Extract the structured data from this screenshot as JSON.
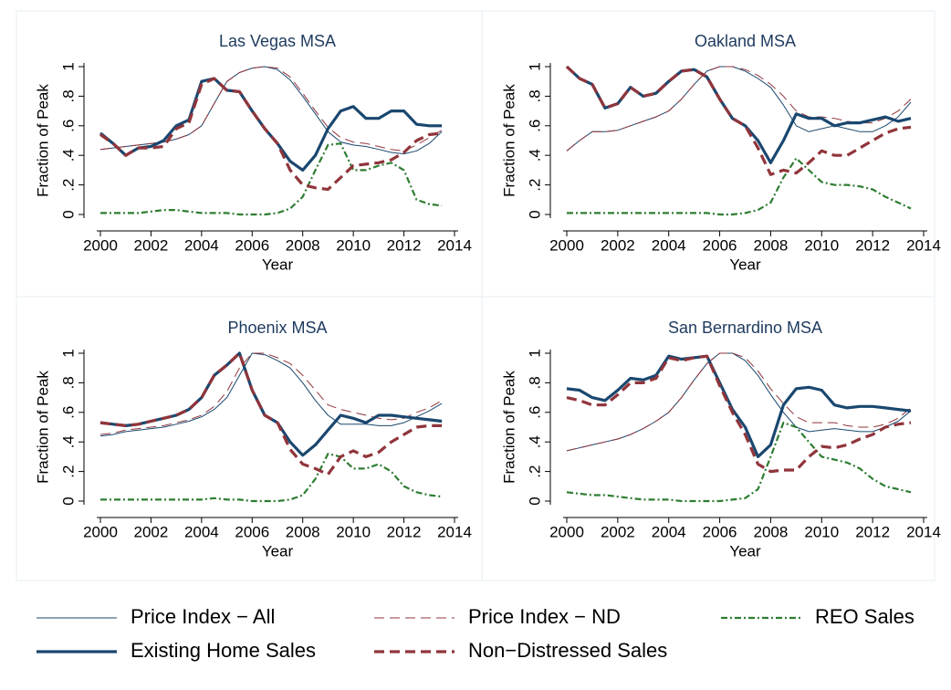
{
  "chart_data": [
    {
      "type": "line",
      "title": "Las Vegas MSA",
      "x_label": "Year",
      "y_label": "Fraction of Peak",
      "x": [
        2000,
        2000.5,
        2001,
        2001.5,
        2002,
        2002.5,
        2003,
        2003.5,
        2004,
        2004.5,
        2005,
        2005.5,
        2006,
        2006.5,
        2007,
        2007.5,
        2008,
        2008.5,
        2009,
        2009.5,
        2010,
        2010.5,
        2011,
        2011.5,
        2012,
        2012.5,
        2013,
        2013.5
      ],
      "xlim": [
        2000,
        2014
      ],
      "xticks": [
        2000,
        2002,
        2004,
        2006,
        2008,
        2010,
        2012,
        2014
      ],
      "ylim": [
        0,
        1
      ],
      "yticks": [
        0,
        {
          "value": 0.2,
          "label": ".2"
        },
        {
          "value": 0.4,
          "label": ".4"
        },
        {
          "value": 0.6,
          "label": ".6"
        },
        {
          "value": 0.8,
          "label": ".8"
        },
        1
      ],
      "series": [
        {
          "name": "Price Index − All",
          "color": "#1a476f",
          "weight": "thin",
          "dash": "solid",
          "values": [
            0.44,
            0.45,
            0.46,
            0.47,
            0.48,
            0.49,
            0.51,
            0.54,
            0.6,
            0.75,
            0.9,
            0.96,
            0.99,
            1.0,
            0.98,
            0.91,
            0.8,
            0.68,
            0.56,
            0.49,
            0.47,
            0.46,
            0.44,
            0.42,
            0.41,
            0.43,
            0.48,
            0.56
          ]
        },
        {
          "name": "Price Index − ND",
          "color": "#90353b",
          "weight": "thin",
          "dash": "dash",
          "values": [
            0.44,
            0.45,
            0.46,
            0.47,
            0.48,
            0.49,
            0.51,
            0.54,
            0.6,
            0.75,
            0.9,
            0.96,
            0.99,
            1.0,
            0.99,
            0.93,
            0.82,
            0.7,
            0.59,
            0.52,
            0.49,
            0.48,
            0.46,
            0.44,
            0.43,
            0.47,
            0.52,
            0.57
          ]
        },
        {
          "name": "REO Sales",
          "color": "#2e7d32",
          "weight": "medium",
          "dash": "dashdot",
          "values": [
            0.01,
            0.01,
            0.01,
            0.01,
            0.02,
            0.03,
            0.03,
            0.02,
            0.01,
            0.01,
            0.01,
            0.0,
            0.0,
            0.0,
            0.01,
            0.04,
            0.12,
            0.3,
            0.47,
            0.48,
            0.3,
            0.3,
            0.33,
            0.35,
            0.3,
            0.1,
            0.07,
            0.06
          ]
        },
        {
          "name": "Existing Home Sales",
          "color": "#1a476f",
          "weight": "thick",
          "dash": "solid",
          "values": [
            0.55,
            0.48,
            0.4,
            0.45,
            0.46,
            0.5,
            0.6,
            0.64,
            0.9,
            0.92,
            0.84,
            0.83,
            0.7,
            0.58,
            0.48,
            0.36,
            0.3,
            0.4,
            0.58,
            0.7,
            0.73,
            0.65,
            0.65,
            0.7,
            0.7,
            0.61,
            0.6,
            0.6
          ]
        },
        {
          "name": "Non−Distressed Sales",
          "color": "#90353b",
          "weight": "thick",
          "dash": "dash",
          "values": [
            0.54,
            0.48,
            0.4,
            0.45,
            0.45,
            0.46,
            0.58,
            0.62,
            0.88,
            0.92,
            0.84,
            0.83,
            0.7,
            0.58,
            0.48,
            0.3,
            0.2,
            0.18,
            0.17,
            0.25,
            0.33,
            0.34,
            0.35,
            0.37,
            0.42,
            0.5,
            0.54,
            0.55
          ]
        }
      ]
    },
    {
      "type": "line",
      "title": "Oakland MSA",
      "x_label": "Year",
      "y_label": "Fraction of Peak",
      "x": [
        2000,
        2000.5,
        2001,
        2001.5,
        2002,
        2002.5,
        2003,
        2003.5,
        2004,
        2004.5,
        2005,
        2005.5,
        2006,
        2006.5,
        2007,
        2007.5,
        2008,
        2008.5,
        2009,
        2009.5,
        2010,
        2010.5,
        2011,
        2011.5,
        2012,
        2012.5,
        2013,
        2013.5
      ],
      "xlim": [
        2000,
        2014
      ],
      "xticks": [
        2000,
        2002,
        2004,
        2006,
        2008,
        2010,
        2012,
        2014
      ],
      "ylim": [
        0,
        1
      ],
      "yticks": [
        0,
        {
          "value": 0.2,
          "label": ".2"
        },
        {
          "value": 0.4,
          "label": ".4"
        },
        {
          "value": 0.6,
          "label": ".6"
        },
        {
          "value": 0.8,
          "label": ".8"
        },
        1
      ],
      "series": [
        {
          "name": "Price Index − All",
          "color": "#1a476f",
          "weight": "thin",
          "dash": "solid",
          "values": [
            0.43,
            0.5,
            0.56,
            0.56,
            0.57,
            0.6,
            0.63,
            0.66,
            0.7,
            0.78,
            0.88,
            0.97,
            1.0,
            1.0,
            0.97,
            0.92,
            0.86,
            0.74,
            0.6,
            0.56,
            0.58,
            0.6,
            0.58,
            0.56,
            0.56,
            0.6,
            0.66,
            0.76
          ]
        },
        {
          "name": "Price Index − ND",
          "color": "#90353b",
          "weight": "thin",
          "dash": "dash",
          "values": [
            0.43,
            0.5,
            0.56,
            0.56,
            0.57,
            0.6,
            0.63,
            0.66,
            0.7,
            0.78,
            0.88,
            0.97,
            1.0,
            1.0,
            0.98,
            0.94,
            0.88,
            0.8,
            0.7,
            0.66,
            0.66,
            0.65,
            0.63,
            0.62,
            0.62,
            0.65,
            0.7,
            0.78
          ]
        },
        {
          "name": "REO Sales",
          "color": "#2e7d32",
          "weight": "medium",
          "dash": "dashdot",
          "values": [
            0.01,
            0.01,
            0.01,
            0.01,
            0.01,
            0.01,
            0.01,
            0.01,
            0.01,
            0.01,
            0.01,
            0.01,
            0.0,
            0.0,
            0.01,
            0.03,
            0.08,
            0.25,
            0.38,
            0.3,
            0.22,
            0.2,
            0.2,
            0.19,
            0.17,
            0.12,
            0.08,
            0.04
          ]
        },
        {
          "name": "Existing Home Sales",
          "color": "#1a476f",
          "weight": "thick",
          "dash": "solid",
          "values": [
            1.0,
            0.92,
            0.88,
            0.72,
            0.75,
            0.86,
            0.8,
            0.82,
            0.9,
            0.97,
            0.98,
            0.93,
            0.78,
            0.65,
            0.6,
            0.5,
            0.35,
            0.5,
            0.68,
            0.65,
            0.65,
            0.6,
            0.62,
            0.62,
            0.64,
            0.66,
            0.63,
            0.65
          ]
        },
        {
          "name": "Non−Distressed Sales",
          "color": "#90353b",
          "weight": "thick",
          "dash": "dash",
          "values": [
            1.0,
            0.92,
            0.88,
            0.72,
            0.75,
            0.86,
            0.8,
            0.82,
            0.9,
            0.97,
            0.98,
            0.93,
            0.78,
            0.65,
            0.6,
            0.45,
            0.27,
            0.3,
            0.28,
            0.35,
            0.43,
            0.4,
            0.4,
            0.45,
            0.5,
            0.55,
            0.58,
            0.59
          ]
        }
      ]
    },
    {
      "type": "line",
      "title": "Phoenix MSA",
      "x_label": "Year",
      "y_label": "Fraction of Peak",
      "x": [
        2000,
        2000.5,
        2001,
        2001.5,
        2002,
        2002.5,
        2003,
        2003.5,
        2004,
        2004.5,
        2005,
        2005.5,
        2006,
        2006.5,
        2007,
        2007.5,
        2008,
        2008.5,
        2009,
        2009.5,
        2010,
        2010.5,
        2011,
        2011.5,
        2012,
        2012.5,
        2013,
        2013.5
      ],
      "xlim": [
        2000,
        2014
      ],
      "xticks": [
        2000,
        2002,
        2004,
        2006,
        2008,
        2010,
        2012,
        2014
      ],
      "ylim": [
        0,
        1
      ],
      "yticks": [
        0,
        {
          "value": 0.2,
          "label": ".2"
        },
        {
          "value": 0.4,
          "label": ".4"
        },
        {
          "value": 0.6,
          "label": ".6"
        },
        {
          "value": 0.8,
          "label": ".8"
        },
        1
      ],
      "series": [
        {
          "name": "Price Index − All",
          "color": "#1a476f",
          "weight": "thin",
          "dash": "solid",
          "values": [
            0.44,
            0.45,
            0.47,
            0.48,
            0.49,
            0.5,
            0.52,
            0.54,
            0.57,
            0.62,
            0.7,
            0.85,
            1.0,
            0.99,
            0.95,
            0.9,
            0.8,
            0.68,
            0.58,
            0.52,
            0.52,
            0.52,
            0.51,
            0.51,
            0.53,
            0.57,
            0.61,
            0.66
          ]
        },
        {
          "name": "Price Index − ND",
          "color": "#90353b",
          "weight": "thin",
          "dash": "dash",
          "values": [
            0.45,
            0.46,
            0.48,
            0.49,
            0.5,
            0.51,
            0.53,
            0.55,
            0.58,
            0.64,
            0.74,
            0.9,
            1.0,
            1.0,
            0.97,
            0.93,
            0.85,
            0.75,
            0.65,
            0.62,
            0.6,
            0.58,
            0.56,
            0.55,
            0.56,
            0.6,
            0.63,
            0.68
          ]
        },
        {
          "name": "REO Sales",
          "color": "#2e7d32",
          "weight": "medium",
          "dash": "dashdot",
          "values": [
            0.01,
            0.01,
            0.01,
            0.01,
            0.01,
            0.01,
            0.01,
            0.01,
            0.01,
            0.02,
            0.01,
            0.01,
            0.0,
            0.0,
            0.0,
            0.01,
            0.04,
            0.15,
            0.32,
            0.3,
            0.22,
            0.22,
            0.25,
            0.2,
            0.1,
            0.06,
            0.04,
            0.03
          ]
        },
        {
          "name": "Existing Home Sales",
          "color": "#1a476f",
          "weight": "thick",
          "dash": "solid",
          "values": [
            0.53,
            0.52,
            0.51,
            0.52,
            0.54,
            0.56,
            0.58,
            0.62,
            0.7,
            0.85,
            0.92,
            1.0,
            0.75,
            0.58,
            0.53,
            0.4,
            0.31,
            0.38,
            0.48,
            0.58,
            0.56,
            0.53,
            0.58,
            0.58,
            0.57,
            0.56,
            0.55,
            0.54
          ]
        },
        {
          "name": "Non−Distressed Sales",
          "color": "#90353b",
          "weight": "thick",
          "dash": "dash",
          "values": [
            0.53,
            0.52,
            0.51,
            0.52,
            0.54,
            0.56,
            0.58,
            0.62,
            0.7,
            0.85,
            0.92,
            1.0,
            0.75,
            0.58,
            0.53,
            0.35,
            0.25,
            0.22,
            0.18,
            0.3,
            0.34,
            0.3,
            0.33,
            0.4,
            0.45,
            0.5,
            0.51,
            0.51
          ]
        }
      ]
    },
    {
      "type": "line",
      "title": "San Bernardino MSA",
      "x_label": "Year",
      "y_label": "Fraction of Peak",
      "x": [
        2000,
        2000.5,
        2001,
        2001.5,
        2002,
        2002.5,
        2003,
        2003.5,
        2004,
        2004.5,
        2005,
        2005.5,
        2006,
        2006.5,
        2007,
        2007.5,
        2008,
        2008.5,
        2009,
        2009.5,
        2010,
        2010.5,
        2011,
        2011.5,
        2012,
        2012.5,
        2013,
        2013.5
      ],
      "xlim": [
        2000,
        2014
      ],
      "xticks": [
        2000,
        2002,
        2004,
        2006,
        2008,
        2010,
        2012,
        2014
      ],
      "ylim": [
        0,
        1
      ],
      "yticks": [
        0,
        {
          "value": 0.2,
          "label": ".2"
        },
        {
          "value": 0.4,
          "label": ".4"
        },
        {
          "value": 0.6,
          "label": ".6"
        },
        {
          "value": 0.8,
          "label": ".8"
        },
        1
      ],
      "series": [
        {
          "name": "Price Index − All",
          "color": "#1a476f",
          "weight": "thin",
          "dash": "solid",
          "values": [
            0.34,
            0.36,
            0.38,
            0.4,
            0.42,
            0.45,
            0.49,
            0.54,
            0.6,
            0.7,
            0.82,
            0.93,
            1.0,
            1.0,
            0.95,
            0.85,
            0.72,
            0.6,
            0.5,
            0.47,
            0.48,
            0.49,
            0.48,
            0.47,
            0.47,
            0.5,
            0.54,
            0.61
          ]
        },
        {
          "name": "Price Index − ND",
          "color": "#90353b",
          "weight": "thin",
          "dash": "dash",
          "values": [
            0.34,
            0.36,
            0.38,
            0.4,
            0.42,
            0.45,
            0.49,
            0.54,
            0.6,
            0.7,
            0.82,
            0.93,
            1.0,
            1.0,
            0.97,
            0.88,
            0.76,
            0.66,
            0.57,
            0.53,
            0.53,
            0.53,
            0.51,
            0.5,
            0.5,
            0.52,
            0.56,
            0.63
          ]
        },
        {
          "name": "REO Sales",
          "color": "#2e7d32",
          "weight": "medium",
          "dash": "dashdot",
          "values": [
            0.06,
            0.05,
            0.04,
            0.04,
            0.03,
            0.02,
            0.01,
            0.01,
            0.01,
            0.0,
            0.0,
            0.0,
            0.0,
            0.01,
            0.02,
            0.08,
            0.3,
            0.53,
            0.5,
            0.4,
            0.3,
            0.28,
            0.26,
            0.22,
            0.15,
            0.1,
            0.08,
            0.06
          ]
        },
        {
          "name": "Existing Home Sales",
          "color": "#1a476f",
          "weight": "thick",
          "dash": "solid",
          "values": [
            0.76,
            0.75,
            0.7,
            0.68,
            0.75,
            0.83,
            0.82,
            0.85,
            0.98,
            0.96,
            0.97,
            0.98,
            0.8,
            0.62,
            0.5,
            0.3,
            0.38,
            0.65,
            0.76,
            0.77,
            0.75,
            0.65,
            0.63,
            0.64,
            0.64,
            0.63,
            0.62,
            0.61
          ]
        },
        {
          "name": "Non−Distressed Sales",
          "color": "#90353b",
          "weight": "thick",
          "dash": "dash",
          "values": [
            0.7,
            0.68,
            0.65,
            0.65,
            0.72,
            0.8,
            0.8,
            0.83,
            0.97,
            0.95,
            0.97,
            0.98,
            0.78,
            0.6,
            0.45,
            0.25,
            0.2,
            0.21,
            0.21,
            0.3,
            0.37,
            0.36,
            0.38,
            0.42,
            0.45,
            0.5,
            0.52,
            0.53
          ]
        }
      ]
    }
  ]
}
